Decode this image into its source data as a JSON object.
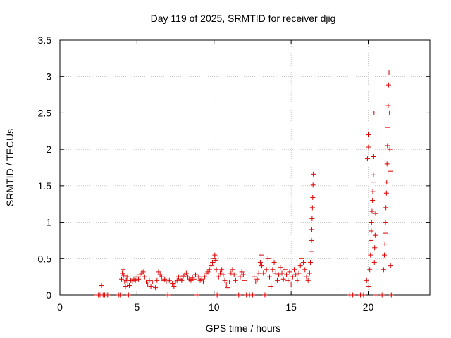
{
  "chart_data": {
    "type": "scatter",
    "title": "Day 119 of 2025, SRMTID for receiver djig",
    "xlabel": "GPS time / hours",
    "ylabel": "SRMTID / TECUs",
    "xlim": [
      0,
      24
    ],
    "ylim": [
      0,
      3.5
    ],
    "xticks": [
      0,
      5,
      10,
      15,
      20
    ],
    "yticks": [
      0,
      0.5,
      1,
      1.5,
      2,
      2.5,
      3,
      3.5
    ],
    "xtick_labels": [
      "0",
      "5",
      "10",
      "15",
      "20"
    ],
    "ytick_labels": [
      "0",
      "0.5",
      "1",
      "1.5",
      "2",
      "2.5",
      "3",
      "3.5"
    ],
    "grid": true,
    "marker": "+",
    "series": [
      {
        "name": "SRMTID",
        "color": "#dd0000",
        "points": [
          [
            2.4,
            0
          ],
          [
            2.5,
            0
          ],
          [
            2.6,
            0
          ],
          [
            2.7,
            0.13
          ],
          [
            2.8,
            0
          ],
          [
            2.9,
            0
          ],
          [
            3.0,
            0
          ],
          [
            3.1,
            0
          ],
          [
            3.8,
            0
          ],
          [
            3.9,
            0
          ],
          [
            4.0,
            0.22
          ],
          [
            4.05,
            0.3
          ],
          [
            4.1,
            0.35
          ],
          [
            4.15,
            0.27
          ],
          [
            4.2,
            0.18
          ],
          [
            4.25,
            0.12
          ],
          [
            4.3,
            0.2
          ],
          [
            4.35,
            0.25
          ],
          [
            4.4,
            0.15
          ],
          [
            4.45,
            0
          ],
          [
            4.5,
            0.13
          ],
          [
            4.6,
            0.2
          ],
          [
            4.7,
            0.18
          ],
          [
            4.8,
            0.22
          ],
          [
            4.9,
            0.2
          ],
          [
            5.0,
            0.25
          ],
          [
            5.1,
            0.22
          ],
          [
            5.2,
            0.28
          ],
          [
            5.3,
            0.3
          ],
          [
            5.4,
            0.32
          ],
          [
            5.5,
            0.25
          ],
          [
            5.6,
            0.18
          ],
          [
            5.7,
            0.15
          ],
          [
            5.8,
            0.2
          ],
          [
            5.9,
            0.12
          ],
          [
            6.0,
            0.18
          ],
          [
            6.1,
            0.15
          ],
          [
            6.2,
            0.1
          ],
          [
            6.3,
            0.2
          ],
          [
            6.4,
            0.32
          ],
          [
            6.5,
            0.28
          ],
          [
            6.6,
            0.25
          ],
          [
            6.7,
            0.2
          ],
          [
            6.8,
            0.22
          ],
          [
            6.9,
            0.18
          ],
          [
            7.0,
            0
          ],
          [
            7.1,
            0.2
          ],
          [
            7.2,
            0.18
          ],
          [
            7.3,
            0.16
          ],
          [
            7.4,
            0.12
          ],
          [
            7.5,
            0.18
          ],
          [
            7.6,
            0.2
          ],
          [
            7.7,
            0.25
          ],
          [
            7.8,
            0.22
          ],
          [
            7.9,
            0.2
          ],
          [
            8.0,
            0.26
          ],
          [
            8.1,
            0.28
          ],
          [
            8.2,
            0.3
          ],
          [
            8.3,
            0.25
          ],
          [
            8.4,
            0.22
          ],
          [
            8.5,
            0.2
          ],
          [
            8.6,
            0.24
          ],
          [
            8.7,
            0.22
          ],
          [
            8.8,
            0.28
          ],
          [
            8.9,
            0
          ],
          [
            9.0,
            0.25
          ],
          [
            9.1,
            0.2
          ],
          [
            9.2,
            0.22
          ],
          [
            9.3,
            0.18
          ],
          [
            9.4,
            0.25
          ],
          [
            9.5,
            0.3
          ],
          [
            9.6,
            0.32
          ],
          [
            9.7,
            0.35
          ],
          [
            9.8,
            0.4
          ],
          [
            9.9,
            0.45
          ],
          [
            10.0,
            0.5
          ],
          [
            10.05,
            0.55
          ],
          [
            10.1,
            0.48
          ],
          [
            10.15,
            0.35
          ],
          [
            10.2,
            0
          ],
          [
            10.3,
            0.25
          ],
          [
            10.4,
            0.3
          ],
          [
            10.5,
            0.35
          ],
          [
            10.6,
            0.28
          ],
          [
            10.7,
            0.2
          ],
          [
            10.8,
            0.15
          ],
          [
            10.9,
            0.1
          ],
          [
            11.0,
            0.18
          ],
          [
            11.1,
            0.3
          ],
          [
            11.2,
            0.35
          ],
          [
            11.3,
            0.28
          ],
          [
            11.4,
            0.2
          ],
          [
            11.5,
            0.15
          ],
          [
            11.6,
            0
          ],
          [
            11.7,
            0.25
          ],
          [
            11.8,
            0.32
          ],
          [
            11.9,
            0.28
          ],
          [
            12.0,
            0.2
          ],
          [
            12.1,
            0
          ],
          [
            12.3,
            0
          ],
          [
            12.5,
            0
          ],
          [
            12.6,
            0.25
          ],
          [
            12.7,
            0.18
          ],
          [
            12.8,
            0.22
          ],
          [
            12.9,
            0.3
          ],
          [
            13.0,
            0.45
          ],
          [
            13.05,
            0.55
          ],
          [
            13.1,
            0.4
          ],
          [
            13.2,
            0.3
          ],
          [
            13.3,
            0
          ],
          [
            13.4,
            0.35
          ],
          [
            13.5,
            0.5
          ],
          [
            13.6,
            0.25
          ],
          [
            13.7,
            0.12
          ],
          [
            13.8,
            0.35
          ],
          [
            13.9,
            0.45
          ],
          [
            14.0,
            0.3
          ],
          [
            14.1,
            0.2
          ],
          [
            14.2,
            0.28
          ],
          [
            14.3,
            0.38
          ],
          [
            14.4,
            0.3
          ],
          [
            14.5,
            0.22
          ],
          [
            14.6,
            0.35
          ],
          [
            14.7,
            0.28
          ],
          [
            14.8,
            0.2
          ],
          [
            14.9,
            0.32
          ],
          [
            15.0,
            0.15
          ],
          [
            15.1,
            0.25
          ],
          [
            15.2,
            0.35
          ],
          [
            15.3,
            0.28
          ],
          [
            15.4,
            0.2
          ],
          [
            15.5,
            0.3
          ],
          [
            15.6,
            0.4
          ],
          [
            15.7,
            0.5
          ],
          [
            15.8,
            0.45
          ],
          [
            15.9,
            0.35
          ],
          [
            16.0,
            0.25
          ],
          [
            16.1,
            0.2
          ],
          [
            16.2,
            0.3
          ],
          [
            16.25,
            0.45
          ],
          [
            16.3,
            0.6
          ],
          [
            16.32,
            0.75
          ],
          [
            16.34,
            0.9
          ],
          [
            16.36,
            1.05
          ],
          [
            16.38,
            1.2
          ],
          [
            16.4,
            1.34
          ],
          [
            16.42,
            1.51
          ],
          [
            16.44,
            1.66
          ],
          [
            18.8,
            0
          ],
          [
            19.0,
            0
          ],
          [
            19.5,
            0
          ],
          [
            19.7,
            0
          ],
          [
            19.9,
            0.2
          ],
          [
            19.95,
            1.87
          ],
          [
            20.0,
            2.2
          ],
          [
            20.02,
            2.03
          ],
          [
            20.05,
            0.12
          ],
          [
            20.1,
            0.35
          ],
          [
            20.15,
            0.55
          ],
          [
            20.18,
            0.75
          ],
          [
            20.2,
            0.88
          ],
          [
            20.22,
            1.0
          ],
          [
            20.25,
            1.15
          ],
          [
            20.28,
            1.3
          ],
          [
            20.3,
            1.42
          ],
          [
            20.32,
            1.55
          ],
          [
            20.34,
            1.65
          ],
          [
            20.36,
            1.9
          ],
          [
            20.38,
            2.5
          ],
          [
            20.4,
            0.45
          ],
          [
            20.42,
            0.65
          ],
          [
            20.45,
            0.82
          ],
          [
            20.48,
            1.12
          ],
          [
            20.5,
            0
          ],
          [
            20.9,
            0
          ],
          [
            21.0,
            0.35
          ],
          [
            21.05,
            0.55
          ],
          [
            21.08,
            0.7
          ],
          [
            21.1,
            0.85
          ],
          [
            21.12,
            1.0
          ],
          [
            21.15,
            1.2
          ],
          [
            21.18,
            1.4
          ],
          [
            21.2,
            1.55
          ],
          [
            21.22,
            1.8
          ],
          [
            21.25,
            2.05
          ],
          [
            21.28,
            2.3
          ],
          [
            21.3,
            2.6
          ],
          [
            21.32,
            2.88
          ],
          [
            21.35,
            3.05
          ],
          [
            21.38,
            2.5
          ],
          [
            21.4,
            2.0
          ],
          [
            21.42,
            1.7
          ],
          [
            21.45,
            0.4
          ],
          [
            21.5,
            0
          ]
        ]
      }
    ]
  }
}
